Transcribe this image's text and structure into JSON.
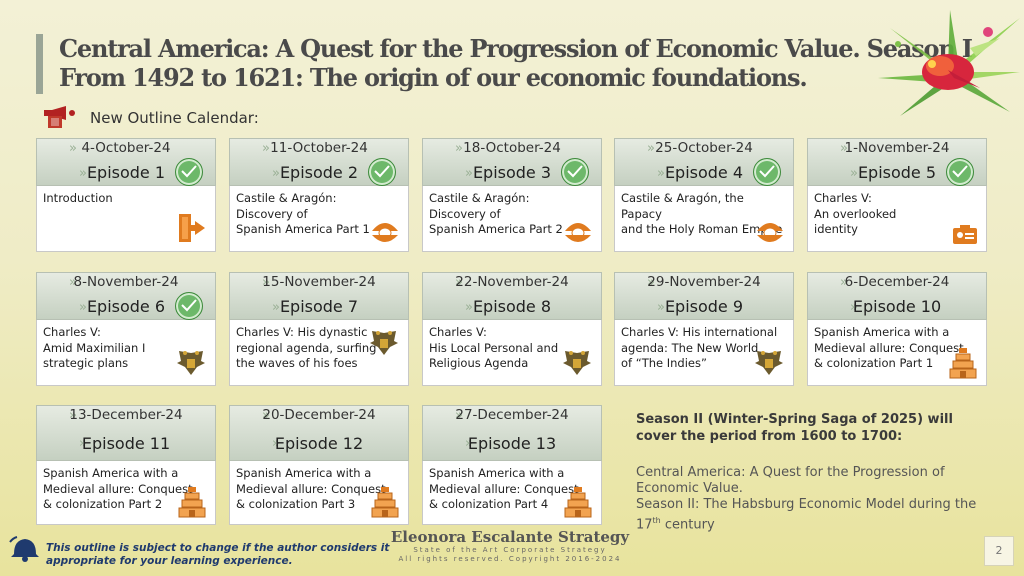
{
  "title": {
    "line1": "Central America:  A Quest for the Progression of  Economic Value. Season I",
    "line2": "From 1492 to 1621: The origin of  our economic foundations."
  },
  "subhead": "New Outline Calendar:",
  "cards": [
    {
      "date": "4-October-24",
      "episode": "Episode 1",
      "text": "Introduction",
      "icon": "exit-door-icon",
      "done": true
    },
    {
      "date": "11-October-24",
      "episode": "Episode 2",
      "text": "Castile & Aragón:\nDiscovery of\nSpanish America Part 1",
      "icon": "pearl-shell-icon",
      "done": true
    },
    {
      "date": "18-October-24",
      "episode": "Episode 3",
      "text": "Castile & Aragón:\nDiscovery of\nSpanish America Part 2",
      "icon": "pearl-shell-icon",
      "done": true
    },
    {
      "date": "25-October-24",
      "episode": "Episode 4",
      "text": "Castile & Aragón, the Papacy\nand the Holy Roman Empire",
      "icon": "pearl-shell-icon",
      "done": true
    },
    {
      "date": "1-November-24",
      "episode": "Episode 5",
      "text": "Charles V:\nAn overlooked\nidentity",
      "icon": "id-card-icon",
      "done": true
    },
    {
      "date": "8-November-24",
      "episode": "Episode 6",
      "text": "Charles V:\nAmid Maximilian I\nstrategic plans",
      "icon": "double-eagle-icon",
      "done": true
    },
    {
      "date": "15-November-24",
      "episode": "Episode 7",
      "text": "Charles V: His dynastic\nregional agenda, surfing\nthe waves of his foes",
      "icon": "double-eagle-icon",
      "done": false
    },
    {
      "date": "22-November-24",
      "episode": "Episode 8",
      "text": "Charles V:\nHis Local Personal and\nReligious Agenda",
      "icon": "double-eagle-icon",
      "done": false
    },
    {
      "date": "29-November-24",
      "episode": "Episode 9",
      "text": "Charles V: His international\nagenda: The New World\nof “The Indies”",
      "icon": "double-eagle-icon",
      "done": false
    },
    {
      "date": "6-December-24",
      "episode": "Episode 10",
      "text": "Spanish America with a\nMedieval allure: Conquest\n & colonization Part 1",
      "icon": "pyramid-icon",
      "done": false
    },
    {
      "date": "13-December-24",
      "episode": "Episode 11",
      "text": "Spanish America with a\nMedieval allure: Conquest\n & colonization Part 2",
      "icon": "pyramid-icon",
      "done": false
    },
    {
      "date": "20-December-24",
      "episode": "Episode 12",
      "text": "Spanish America with a\nMedieval allure: Conquest\n & colonization Part 3",
      "icon": "pyramid-icon",
      "done": false
    },
    {
      "date": "27-December-24",
      "episode": "Episode 13",
      "text": "Spanish America with a\nMedieval allure: Conquest\n & colonization Part 4",
      "icon": "pyramid-icon",
      "done": false
    }
  ],
  "season2": {
    "heading": "Season II (Winter-Spring Saga of 2025) will cover the period from 1600 to 1700:",
    "line1": "Central America: A Quest for the Progression of Economic Value.",
    "line2": "Season II: The Habsburg Economic Model during the 17",
    "line2_sup": "th",
    "line2_end": " century"
  },
  "footer_note": "This outline is subject to change if the author considers it\nappropriate for your learning experience.",
  "brand": {
    "name": "Eleonora Escalante Strategy",
    "tagline": "State of the Art Corporate Strategy",
    "rights": "All rights reserved. Copyright 2016-2024"
  },
  "page_number": "2",
  "colors": {
    "check": "#6db86a",
    "accent_red": "#b22222",
    "icon_orange": "#e07b1f",
    "footer_text": "#1f3a6e"
  }
}
